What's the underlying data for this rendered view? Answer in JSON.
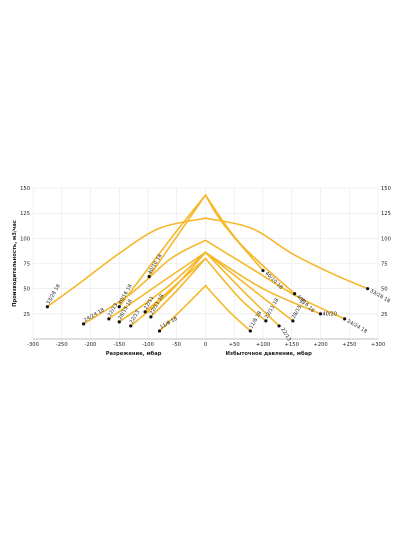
{
  "chart_data": {
    "type": "line",
    "ylabel": "Производительность, м3/час",
    "xlabel_left": "Разрежение, мбар",
    "xlabel_right": "Избыточное давление, мбар",
    "xlim": [
      -300,
      300
    ],
    "ylim": [
      0,
      150
    ],
    "x_ticks": [
      -300,
      -250,
      -200,
      -150,
      -100,
      -50,
      0,
      50,
      100,
      150,
      200,
      250,
      300
    ],
    "y_ticks": [
      25,
      50,
      75,
      100,
      125,
      150
    ],
    "grid": true,
    "colors": {
      "line": "#f5b82a",
      "grid": "#e6e6e6",
      "axis": "#aaaaaa",
      "point": "#111111"
    },
    "series": [
      {
        "label": "33/28 18",
        "side": "left",
        "points": [
          [
            0,
            120
          ],
          [
            -80,
            110
          ],
          [
            -150,
            85
          ],
          [
            -220,
            55
          ],
          [
            -275,
            32
          ]
        ]
      },
      {
        "label": "33/28 18",
        "side": "right",
        "points": [
          [
            0,
            120
          ],
          [
            80,
            110
          ],
          [
            150,
            85
          ],
          [
            220,
            65
          ],
          [
            282,
            50
          ]
        ]
      },
      {
        "label": "24/24 18",
        "side": "left",
        "points": [
          [
            0,
            98
          ],
          [
            -60,
            80
          ],
          [
            -130,
            45
          ],
          [
            -212,
            15
          ]
        ]
      },
      {
        "label": "24/24 18",
        "side": "right",
        "points": [
          [
            0,
            98
          ],
          [
            80,
            70
          ],
          [
            160,
            42
          ],
          [
            242,
            20
          ]
        ]
      },
      {
        "label": "40/10 18",
        "side": "left",
        "points": [
          [
            0,
            143
          ],
          [
            -40,
            110
          ],
          [
            -98,
            62
          ]
        ]
      },
      {
        "label": "40/10 18",
        "side": "right",
        "points": [
          [
            0,
            143
          ],
          [
            30,
            115
          ],
          [
            100,
            68
          ]
        ]
      },
      {
        "label": "40/16 18",
        "side": "left",
        "points": [
          [
            0,
            143
          ],
          [
            -60,
            100
          ],
          [
            -150,
            32
          ]
        ]
      },
      {
        "label": "40/16 18",
        "side": "right",
        "points": [
          [
            0,
            143
          ],
          [
            60,
            95
          ],
          [
            155,
            45
          ]
        ]
      },
      {
        "label": "40/20",
        "side": "right",
        "points": [
          [
            0,
            86
          ],
          [
            100,
            50
          ],
          [
            200,
            25
          ]
        ]
      },
      {
        "label": "40/20",
        "side": "left",
        "points": [
          [
            0,
            86
          ],
          [
            -85,
            53
          ],
          [
            -168,
            20
          ]
        ]
      },
      {
        "label": "28/15 18",
        "side": "left",
        "points": [
          [
            0,
            86
          ],
          [
            -70,
            50
          ],
          [
            -150,
            17
          ]
        ]
      },
      {
        "label": "28/15 18",
        "side": "right",
        "points": [
          [
            0,
            86
          ],
          [
            80,
            50
          ],
          [
            152,
            18
          ]
        ]
      },
      {
        "label": "22/11",
        "side": "left",
        "points": [
          [
            0,
            80
          ],
          [
            -55,
            52
          ],
          [
            -105,
            27
          ]
        ]
      },
      {
        "label": "22/13",
        "side": "left",
        "points": [
          [
            0,
            86
          ],
          [
            -65,
            45
          ],
          [
            -130,
            13
          ]
        ]
      },
      {
        "label": "22/13",
        "side": "right",
        "points": [
          [
            0,
            86
          ],
          [
            70,
            45
          ],
          [
            128,
            13
          ]
        ]
      },
      {
        "label": "22/11 18",
        "side": "left",
        "points": [
          [
            0,
            80
          ],
          [
            -50,
            48
          ],
          [
            -95,
            22
          ]
        ]
      },
      {
        "label": "22/11 18",
        "side": "right",
        "points": [
          [
            0,
            80
          ],
          [
            60,
            40
          ],
          [
            105,
            18
          ]
        ]
      },
      {
        "label": "11/8 18",
        "side": "left",
        "points": [
          [
            0,
            53
          ],
          [
            -40,
            30
          ],
          [
            -80,
            8
          ]
        ]
      },
      {
        "label": "11/8 18",
        "side": "right",
        "points": [
          [
            0,
            53
          ],
          [
            40,
            28
          ],
          [
            78,
            8
          ]
        ]
      }
    ],
    "point_labels": [
      {
        "text": "33/28 18",
        "x": -275,
        "y": 32,
        "angle": -60
      },
      {
        "text": "24/24 18",
        "x": -212,
        "y": 15,
        "angle": -30
      },
      {
        "text": "40/16 18",
        "x": -150,
        "y": 32,
        "angle": -60
      },
      {
        "text": "22/13",
        "x": -168,
        "y": 20,
        "angle": -60
      },
      {
        "text": "28/15 18",
        "x": -150,
        "y": 17,
        "angle": -60
      },
      {
        "text": "22/13",
        "x": -130,
        "y": 13,
        "angle": -60
      },
      {
        "text": "22/11",
        "x": -105,
        "y": 27,
        "angle": -60
      },
      {
        "text": "22/11 18",
        "x": -95,
        "y": 22,
        "angle": -60
      },
      {
        "text": "40/10 18",
        "x": -98,
        "y": 62,
        "angle": -60
      },
      {
        "text": "11/8 18",
        "x": -80,
        "y": 8,
        "angle": -30
      },
      {
        "text": "40/10 18",
        "x": 100,
        "y": 68,
        "angle": 45
      },
      {
        "text": "40/16 18",
        "x": 155,
        "y": 45,
        "angle": 45
      },
      {
        "text": "28/15 18",
        "x": 152,
        "y": 18,
        "angle": -60
      },
      {
        "text": "22/13",
        "x": 128,
        "y": 13,
        "angle": 60
      },
      {
        "text": "22/11 18",
        "x": 105,
        "y": 18,
        "angle": -60
      },
      {
        "text": "11/8 18",
        "x": 78,
        "y": 8,
        "angle": -60
      },
      {
        "text": "40/20",
        "x": 200,
        "y": 25,
        "angle": 0
      },
      {
        "text": "24/24 18",
        "x": 242,
        "y": 20,
        "angle": 30
      },
      {
        "text": "33/28 18",
        "x": 282,
        "y": 50,
        "angle": 30
      }
    ]
  }
}
